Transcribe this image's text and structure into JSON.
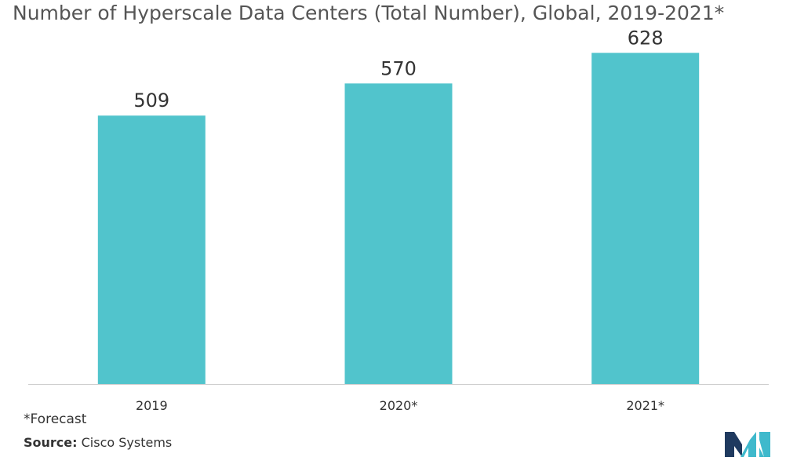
{
  "chart_data": {
    "type": "bar",
    "title": "Number of Hyperscale Data Centers (Total Number), Global, 2019-2021*",
    "categories": [
      "2019",
      "2020*",
      "2021*"
    ],
    "values": [
      509,
      570,
      628
    ],
    "data_labels": [
      "509",
      "570",
      "628"
    ],
    "xlabel": "",
    "ylabel": "",
    "ylim": [
      0,
      700
    ],
    "grid": false,
    "legend": "none",
    "bar_color": "#51C4CC",
    "axis_color": "#CCCCCC"
  },
  "footnote": "*Forecast",
  "source": {
    "label": "Source:",
    "text": "Cisco Systems"
  },
  "logo": {
    "icon": "mordor-intelligence-logo-icon",
    "colors": [
      "#1F3A5F",
      "#3FB9CC"
    ]
  }
}
